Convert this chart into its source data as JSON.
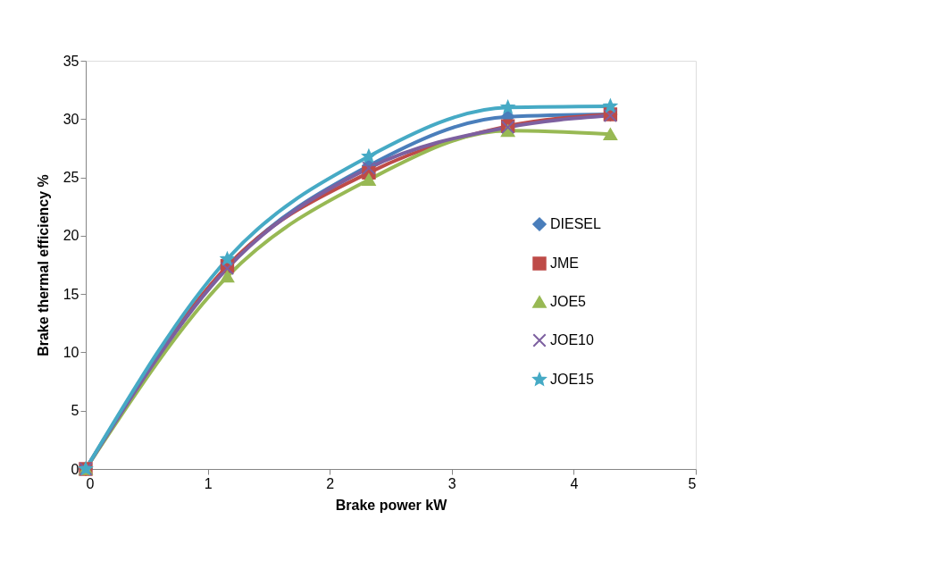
{
  "chart_data": {
    "type": "line",
    "xlabel": "Brake power kW",
    "ylabel": "Brake thermal efficiency %",
    "x": [
      0,
      1.16,
      2.32,
      3.46,
      4.3
    ],
    "series": [
      {
        "name": "DIESEL",
        "color": "#4a7ebb",
        "marker": "diamond",
        "values": [
          0,
          17.3,
          26.0,
          30.2,
          30.4
        ]
      },
      {
        "name": "JME",
        "color": "#be4b48",
        "marker": "square",
        "values": [
          0,
          17.4,
          25.4,
          29.4,
          30.4
        ]
      },
      {
        "name": "JOE5",
        "color": "#98b954",
        "marker": "triangle",
        "values": [
          0,
          16.5,
          24.8,
          29.0,
          28.7
        ]
      },
      {
        "name": "JOE10",
        "color": "#7d60a0",
        "marker": "cross",
        "values": [
          0,
          17.2,
          25.8,
          29.3,
          30.3
        ]
      },
      {
        "name": "JOE15",
        "color": "#46aac5",
        "marker": "star",
        "values": [
          0,
          18.0,
          26.8,
          31.0,
          31.1
        ]
      }
    ],
    "xlim": [
      0,
      5
    ],
    "xticks": [
      0,
      1,
      2,
      3,
      4,
      5
    ],
    "ylim": [
      0,
      35
    ],
    "yticks": [
      0,
      5,
      10,
      15,
      20,
      25,
      30,
      35
    ],
    "grid": false,
    "legend": "right",
    "line_style": "solid"
  }
}
